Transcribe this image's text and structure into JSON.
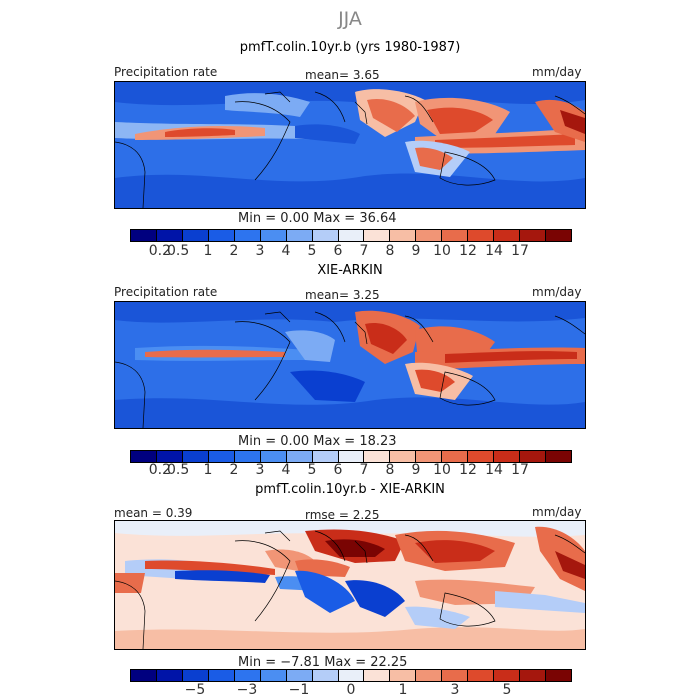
{
  "season": "JJA",
  "panels": [
    {
      "title": "pmfT.colin.10yr.b (yrs 1980-1987)",
      "left_label": "Precipitation rate",
      "center_label": "mean=    3.65",
      "right_label": "mm/day",
      "minmax": "Min =    0.00  Max =   36.64"
    },
    {
      "title": "XIE-ARKIN",
      "left_label": "Precipitation rate",
      "center_label": "mean=    3.25",
      "right_label": "mm/day",
      "minmax": "Min =    0.00  Max =   18.23"
    },
    {
      "title": "pmfT.colin.10yr.b - XIE-ARKIN",
      "left_label": "mean =    0.39",
      "center_label": "rmse =    2.25",
      "right_label": "mm/day",
      "minmax": "Min =  −7.81  Max =   22.25"
    }
  ],
  "precip_scale": {
    "colors": [
      "#00007f",
      "#0014a8",
      "#0a3fd0",
      "#1a5ce6",
      "#2d74ef",
      "#4b8ef2",
      "#7cabf4",
      "#b4cdf8",
      "#e9eff9",
      "#fbe2d7",
      "#f7bea5",
      "#f19576",
      "#e86c4b",
      "#de4a2c",
      "#c92d19",
      "#a5170d",
      "#7a0403"
    ],
    "ticks": [
      "0.2",
      "0.5",
      "1",
      "2",
      "3",
      "4",
      "5",
      "6",
      "7",
      "8",
      "9",
      "10",
      "12",
      "14",
      "17"
    ]
  },
  "diff_scale": {
    "colors": [
      "#00007f",
      "#0014a8",
      "#0a3fd0",
      "#1a5ce6",
      "#2d74ef",
      "#4b8ef2",
      "#7cabf4",
      "#b4cdf8",
      "#e9eff9",
      "#fbe2d7",
      "#f7bea5",
      "#f19576",
      "#e86c4b",
      "#de4a2c",
      "#c92d19",
      "#a5170d",
      "#7a0403"
    ],
    "ticks": [
      "−5",
      "−3",
      "−1",
      "0",
      "1",
      "3",
      "5"
    ]
  }
}
